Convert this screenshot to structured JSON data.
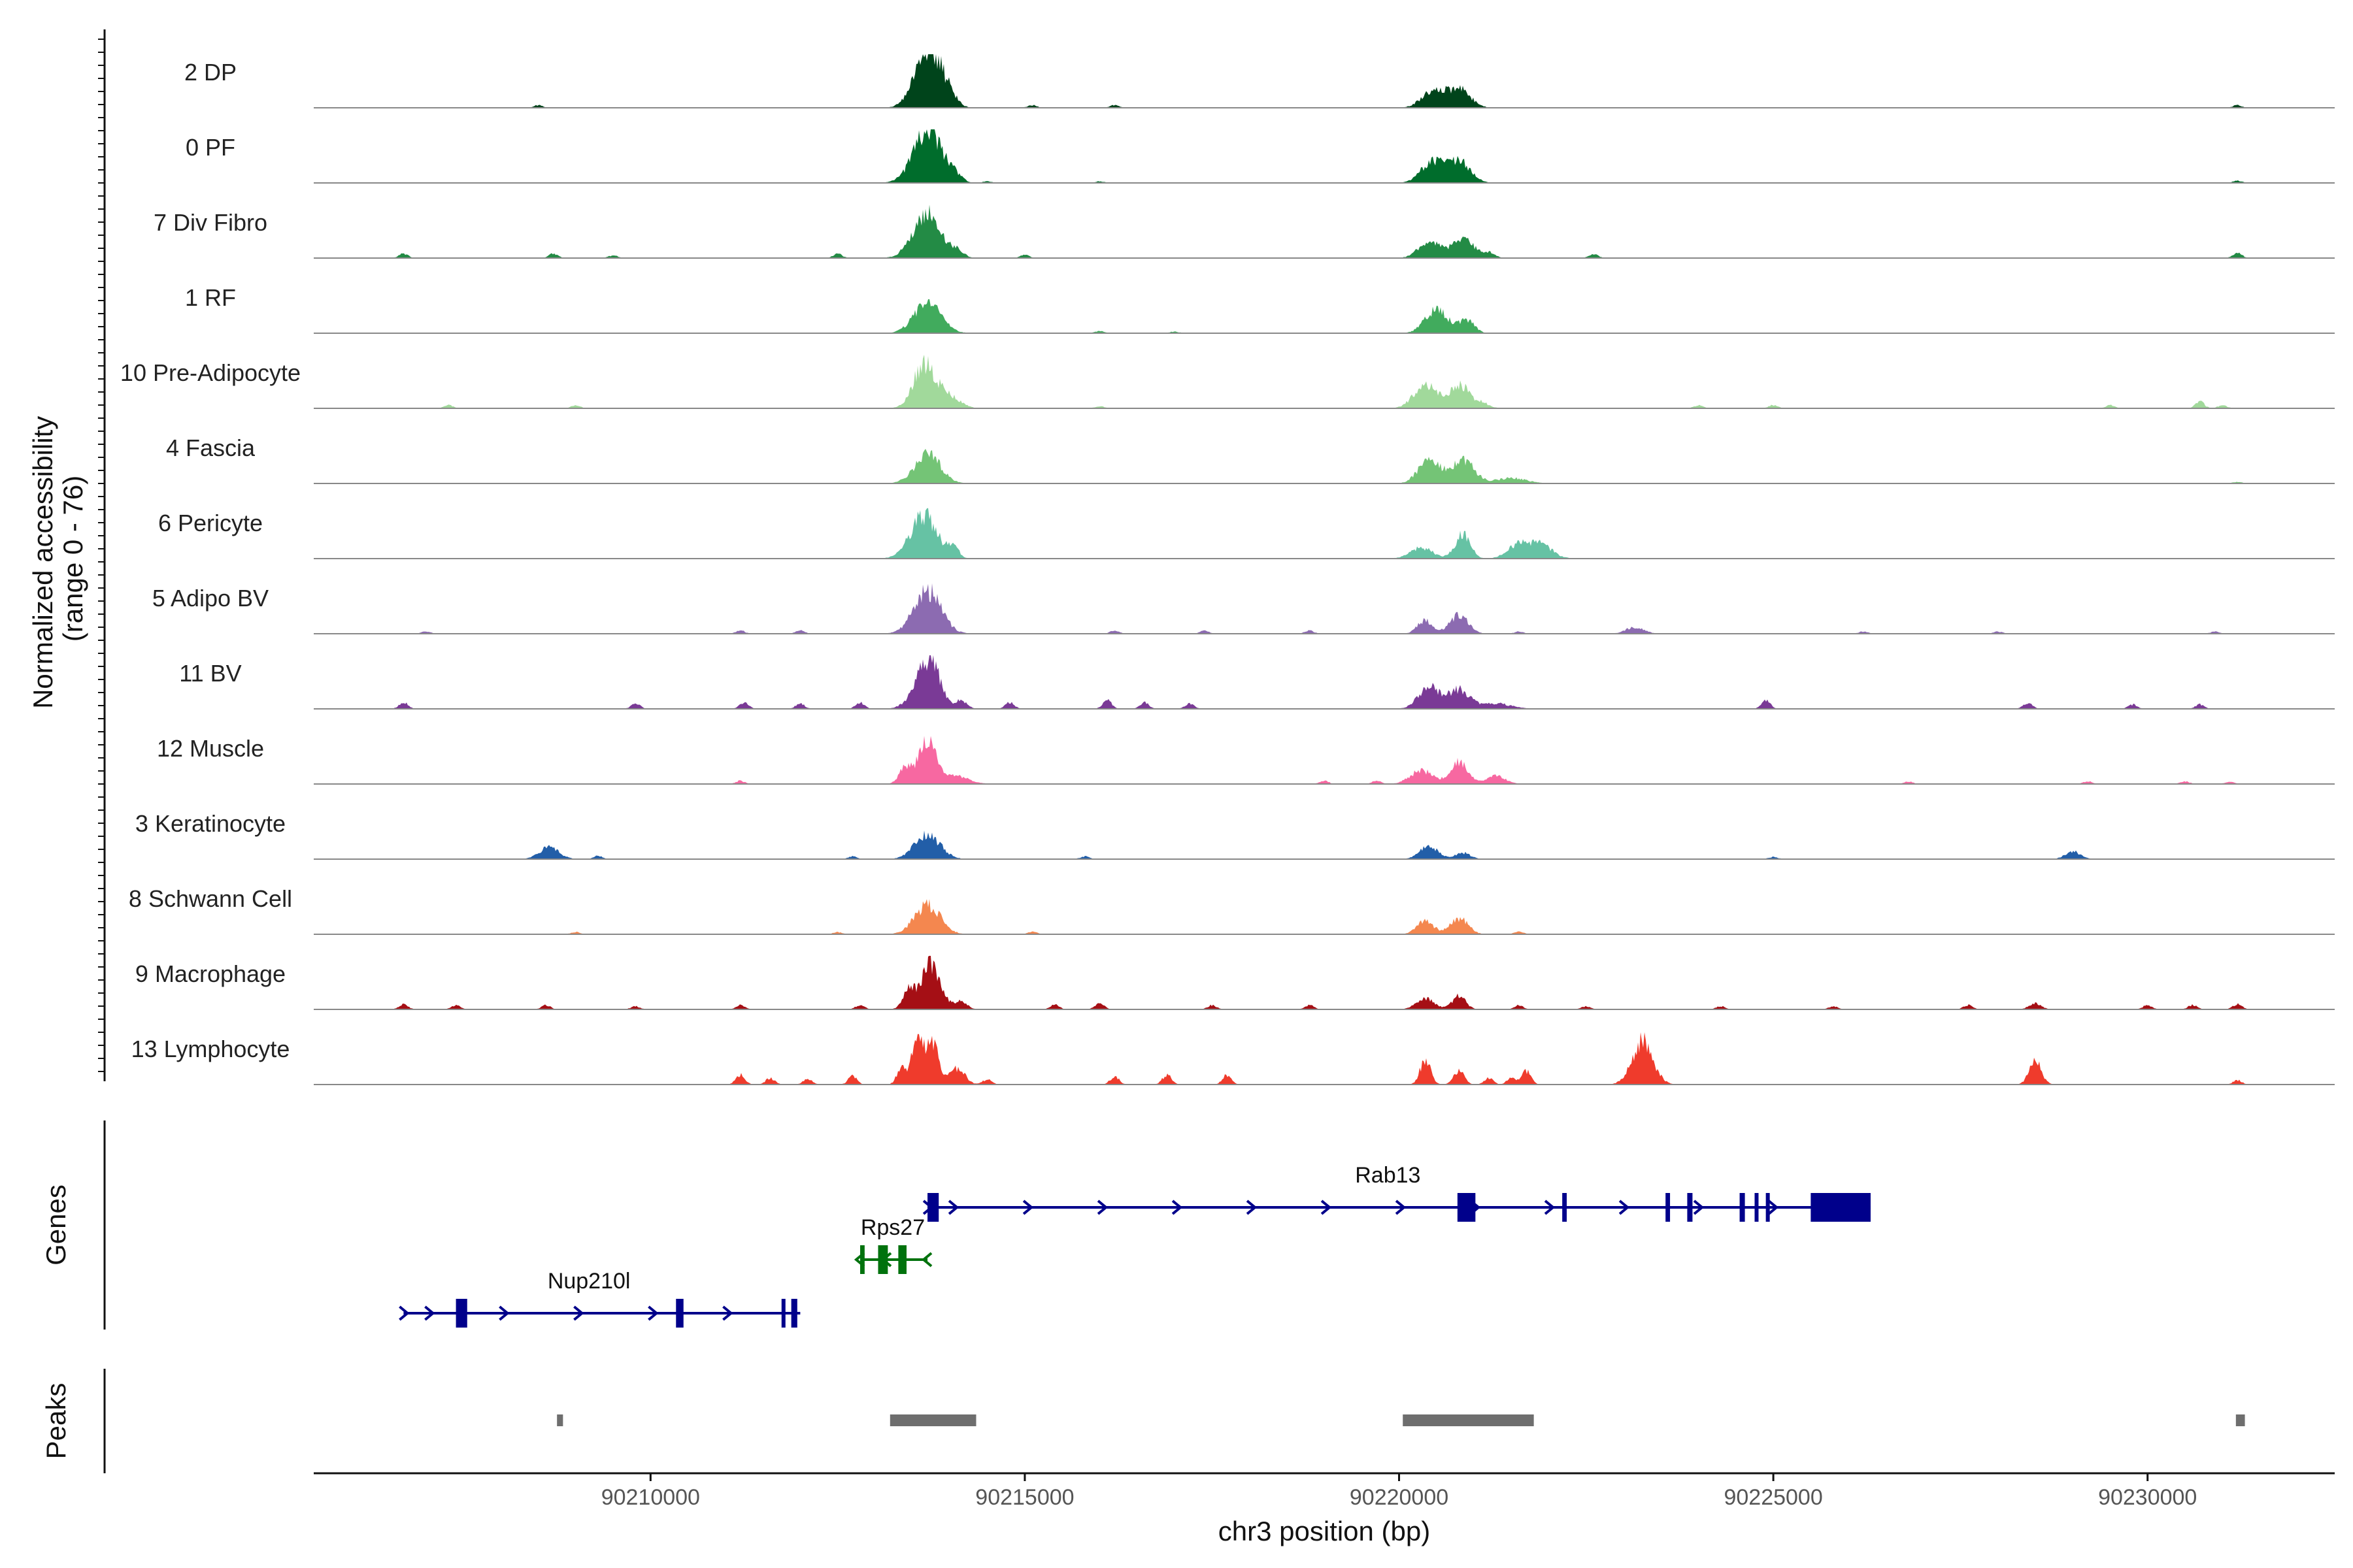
{
  "chart_data": {
    "type": "genome-browser-coverage",
    "y_axis_title_line1": "Normalized accessibility",
    "y_axis_title_line2": "(range 0 - 76)",
    "y_range": [
      0,
      76
    ],
    "x_axis_title": "chr3 position (bp)",
    "x_range": [
      90205500,
      90232500
    ],
    "x_ticks": [
      90210000,
      90215000,
      90220000,
      90225000,
      90230000
    ],
    "x_tick_labels": [
      "90210000",
      "90215000",
      "90220000",
      "90225000",
      "90230000"
    ],
    "genes_title": "Genes",
    "peaks_title": "Peaks",
    "tracks": [
      {
        "name": "2 DP",
        "color": "#00441b",
        "peaks": [
          [
            90213650,
            0.45,
            170
          ],
          [
            90213750,
            0.75,
            160
          ],
          [
            90214000,
            0.15,
            100
          ],
          [
            90220450,
            0.3,
            150
          ],
          [
            90220800,
            0.35,
            150
          ]
        ],
        "specks": [
          [
            90208500,
            0.05
          ],
          [
            90215100,
            0.05
          ],
          [
            90216200,
            0.05
          ],
          [
            90231200,
            0.05
          ]
        ]
      },
      {
        "name": "0 PF",
        "color": "#006d2c",
        "peaks": [
          [
            90213600,
            0.4,
            170
          ],
          [
            90213750,
            0.7,
            160
          ],
          [
            90214050,
            0.15,
            100
          ],
          [
            90220450,
            0.4,
            150
          ],
          [
            90220800,
            0.4,
            150
          ]
        ],
        "specks": [
          [
            90214500,
            0.03
          ],
          [
            90216000,
            0.03
          ],
          [
            90231200,
            0.04
          ]
        ]
      },
      {
        "name": "7 Div Fibro",
        "color": "#238b45",
        "peaks": [
          [
            90213600,
            0.35,
            170
          ],
          [
            90213750,
            0.6,
            160
          ],
          [
            90214100,
            0.15,
            80
          ],
          [
            90220400,
            0.3,
            140
          ],
          [
            90220850,
            0.35,
            150
          ],
          [
            90221200,
            0.1,
            80
          ]
        ],
        "specks": [
          [
            90206700,
            0.08
          ],
          [
            90208700,
            0.08
          ],
          [
            90209500,
            0.05
          ],
          [
            90212500,
            0.08
          ],
          [
            90215000,
            0.06
          ],
          [
            90222600,
            0.08
          ],
          [
            90231200,
            0.1
          ]
        ]
      },
      {
        "name": "1 RF",
        "color": "#41ab5d",
        "peaks": [
          [
            90213700,
            0.55,
            180
          ],
          [
            90220500,
            0.45,
            150
          ],
          [
            90220900,
            0.25,
            100
          ]
        ],
        "specks": [
          [
            90216000,
            0.04
          ],
          [
            90217000,
            0.03
          ]
        ]
      },
      {
        "name": "10 Pre-Adipocyte",
        "color": "#a1d99b",
        "peaks": [
          [
            90213650,
            0.8,
            140
          ],
          [
            90213950,
            0.25,
            160
          ],
          [
            90220350,
            0.45,
            150
          ],
          [
            90220800,
            0.45,
            130
          ],
          [
            90221100,
            0.1,
            100
          ]
        ],
        "specks": [
          [
            90207300,
            0.06
          ],
          [
            90209000,
            0.06
          ],
          [
            90216000,
            0.04
          ],
          [
            90224000,
            0.06
          ],
          [
            90225000,
            0.06
          ],
          [
            90229500,
            0.06
          ],
          [
            90230700,
            0.12
          ],
          [
            90231000,
            0.06
          ]
        ]
      },
      {
        "name": "4 Fascia",
        "color": "#74c476",
        "peaks": [
          [
            90213700,
            0.55,
            170
          ],
          [
            90220400,
            0.45,
            140
          ],
          [
            90220850,
            0.45,
            150
          ],
          [
            90221500,
            0.1,
            200
          ]
        ],
        "specks": [
          [
            90231200,
            0.03
          ]
        ]
      },
      {
        "name": "6 Pericyte",
        "color": "#66c2a4",
        "peaks": [
          [
            90213650,
            0.8,
            180
          ],
          [
            90214050,
            0.2,
            70
          ],
          [
            90220300,
            0.2,
            150
          ],
          [
            90220850,
            0.45,
            100
          ],
          [
            90221600,
            0.25,
            150
          ],
          [
            90221900,
            0.25,
            150
          ]
        ],
        "specks": []
      },
      {
        "name": "5 Adipo BV",
        "color": "#8c6bb1",
        "peaks": [
          [
            90213700,
            0.8,
            180
          ],
          [
            90220350,
            0.25,
            100
          ],
          [
            90220800,
            0.35,
            120
          ],
          [
            90223150,
            0.12,
            120
          ]
        ],
        "specks": [
          [
            90207000,
            0.04
          ],
          [
            90211200,
            0.06
          ],
          [
            90212000,
            0.06
          ],
          [
            90216200,
            0.06
          ],
          [
            90217400,
            0.06
          ],
          [
            90218800,
            0.06
          ],
          [
            90221600,
            0.04
          ],
          [
            90226200,
            0.04
          ],
          [
            90228000,
            0.04
          ],
          [
            90230900,
            0.04
          ]
        ]
      },
      {
        "name": "11 BV",
        "color": "#7a3a96",
        "peaks": [
          [
            90213600,
            0.35,
            150
          ],
          [
            90213750,
            0.7,
            130
          ],
          [
            90214150,
            0.15,
            80
          ],
          [
            90220400,
            0.4,
            140
          ],
          [
            90220800,
            0.35,
            140
          ],
          [
            90221300,
            0.1,
            200
          ]
        ],
        "specks": [
          [
            90206700,
            0.12
          ],
          [
            90209800,
            0.1
          ],
          [
            90211250,
            0.12
          ],
          [
            90212000,
            0.1
          ],
          [
            90212800,
            0.12
          ],
          [
            90214800,
            0.12
          ],
          [
            90216100,
            0.16
          ],
          [
            90216600,
            0.12
          ],
          [
            90217200,
            0.1
          ],
          [
            90224900,
            0.15
          ],
          [
            90228400,
            0.12
          ],
          [
            90229800,
            0.08
          ],
          [
            90230700,
            0.08
          ]
        ]
      },
      {
        "name": "12 Muscle",
        "color": "#f768a1",
        "peaks": [
          [
            90213400,
            0.3,
            80
          ],
          [
            90213700,
            0.8,
            120
          ],
          [
            90214100,
            0.15,
            160
          ],
          [
            90220300,
            0.25,
            150
          ],
          [
            90220800,
            0.4,
            120
          ],
          [
            90221300,
            0.15,
            120
          ]
        ],
        "specks": [
          [
            90211200,
            0.06
          ],
          [
            90219000,
            0.06
          ],
          [
            90219700,
            0.06
          ],
          [
            90226800,
            0.05
          ],
          [
            90229200,
            0.05
          ],
          [
            90230500,
            0.05
          ],
          [
            90231100,
            0.05
          ]
        ]
      },
      {
        "name": "3 Keratinocyte",
        "color": "#225ea8",
        "peaks": [
          [
            90208650,
            0.22,
            130
          ],
          [
            90213700,
            0.45,
            170
          ],
          [
            90220400,
            0.25,
            120
          ],
          [
            90220850,
            0.12,
            100
          ],
          [
            90229000,
            0.15,
            100
          ]
        ],
        "specks": [
          [
            90209300,
            0.06
          ],
          [
            90212700,
            0.05
          ],
          [
            90215800,
            0.05
          ],
          [
            90225000,
            0.04
          ]
        ]
      },
      {
        "name": "8 Schwann Cell",
        "color": "#f4874f",
        "peaks": [
          [
            90213700,
            0.55,
            170
          ],
          [
            90220350,
            0.25,
            110
          ],
          [
            90220800,
            0.3,
            120
          ]
        ],
        "specks": [
          [
            90209000,
            0.04
          ],
          [
            90212500,
            0.04
          ],
          [
            90215100,
            0.05
          ],
          [
            90221600,
            0.05
          ]
        ]
      },
      {
        "name": "9 Macrophage",
        "color": "#a50f15",
        "peaks": [
          [
            90213450,
            0.35,
            80
          ],
          [
            90213750,
            0.85,
            130
          ],
          [
            90214150,
            0.15,
            80
          ],
          [
            90220350,
            0.2,
            120
          ],
          [
            90220800,
            0.25,
            90
          ],
          [
            90228500,
            0.12,
            80
          ],
          [
            90231200,
            0.1,
            60
          ]
        ],
        "specks": [
          [
            90206700,
            0.1
          ],
          [
            90207400,
            0.08
          ],
          [
            90208600,
            0.08
          ],
          [
            90209800,
            0.06
          ],
          [
            90211200,
            0.08
          ],
          [
            90212800,
            0.08
          ],
          [
            90215400,
            0.1
          ],
          [
            90216000,
            0.12
          ],
          [
            90217500,
            0.08
          ],
          [
            90218800,
            0.08
          ],
          [
            90221600,
            0.08
          ],
          [
            90222500,
            0.06
          ],
          [
            90224300,
            0.06
          ],
          [
            90225800,
            0.06
          ],
          [
            90227600,
            0.08
          ],
          [
            90230000,
            0.08
          ],
          [
            90230600,
            0.08
          ]
        ]
      },
      {
        "name": "13 Lymphocyte",
        "color": "#ef3b2c",
        "peaks": [
          [
            90213350,
            0.3,
            60
          ],
          [
            90213550,
            0.75,
            70
          ],
          [
            90213750,
            0.85,
            90
          ],
          [
            90214100,
            0.3,
            100
          ],
          [
            90220350,
            0.45,
            70
          ],
          [
            90220800,
            0.25,
            70
          ],
          [
            90221700,
            0.25,
            60
          ],
          [
            90223250,
            0.8,
            140
          ],
          [
            90228500,
            0.45,
            80
          ]
        ],
        "specks": [
          [
            90211200,
            0.18
          ],
          [
            90211600,
            0.12
          ],
          [
            90212100,
            0.1
          ],
          [
            90212700,
            0.15
          ],
          [
            90214500,
            0.1
          ],
          [
            90216200,
            0.15
          ],
          [
            90216900,
            0.18
          ],
          [
            90217700,
            0.18
          ],
          [
            90221200,
            0.12
          ],
          [
            90221500,
            0.12
          ],
          [
            90231200,
            0.08
          ]
        ]
      }
    ],
    "genes": [
      {
        "name": "Rab13",
        "strand": "+",
        "color": "#00008b",
        "row": 0,
        "start": 90213700,
        "end": 90226300,
        "exons": [
          [
            90213700,
            90213850
          ],
          [
            90220780,
            90221020
          ],
          [
            90222180,
            90222240
          ],
          [
            90223560,
            90223620
          ],
          [
            90223850,
            90223920
          ],
          [
            90224550,
            90224620
          ],
          [
            90224750,
            90224800
          ],
          [
            90224900,
            90224950
          ],
          [
            90225500,
            90226300
          ]
        ]
      },
      {
        "name": "Rps27",
        "strand": "-",
        "color": "#00720d",
        "row": 1,
        "start": 90212800,
        "end": 90213700,
        "exons": [
          [
            90212800,
            90212860
          ],
          [
            90213040,
            90213170
          ],
          [
            90213310,
            90213420
          ]
        ]
      },
      {
        "name": "Nup210l",
        "strand": "+",
        "color": "#00008b",
        "row": 2,
        "start": 90206700,
        "end": 90212000,
        "exons": [
          [
            90207400,
            90207550
          ],
          [
            90210340,
            90210440
          ],
          [
            90211750,
            90211800
          ],
          [
            90211880,
            90211960
          ]
        ]
      }
    ],
    "peak_regions": [
      [
        90208750,
        90208830
      ],
      [
        90213200,
        90214350
      ],
      [
        90220050,
        90221800
      ],
      [
        90231180,
        90231300
      ]
    ]
  }
}
